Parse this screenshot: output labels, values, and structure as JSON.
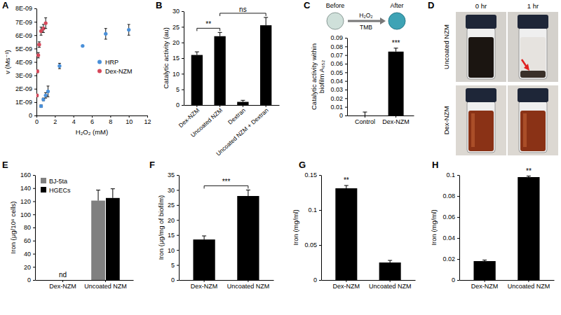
{
  "chart_data": [
    {
      "title": "A",
      "type": "scatter",
      "x_label": "H₂O₂ (mM)",
      "y_label": "v (Ms⁻¹)",
      "xlim": [
        0,
        12
      ],
      "xticks": [
        0,
        2,
        4,
        6,
        8,
        10,
        12
      ],
      "ylim": [
        0,
        8e-09
      ],
      "yticks": [
        0,
        {
          "value": 1e-09,
          "label": "1E-09"
        },
        {
          "value": 2e-09,
          "label": "2E-09"
        },
        {
          "value": 3e-09,
          "label": "3E-09"
        },
        {
          "value": 4e-09,
          "label": "4E-09"
        },
        {
          "value": 5e-09,
          "label": "5E-09"
        },
        {
          "value": 6e-09,
          "label": "6E-09"
        },
        {
          "value": 7e-09,
          "label": "7E-09"
        },
        {
          "value": 8e-09,
          "label": "8E-09"
        }
      ],
      "legend": "right",
      "series": [
        {
          "name": "HRP",
          "color": "#4a90d9",
          "marker": "circle",
          "x": [
            0.5,
            0.75,
            1,
            1.25,
            2.5,
            5,
            7.5,
            10
          ],
          "values": [
            7e-10,
            1.2e-09,
            1.5e-09,
            1.8e-09,
            3.7e-09,
            5.2e-09,
            6.1e-09,
            6.4e-09
          ],
          "errors": [
            1e-10,
            1e-10,
            2e-10,
            4e-10,
            2e-10,
            0,
            4e-10,
            4e-10
          ]
        },
        {
          "name": "Dex-NZM",
          "color": "#d6485a",
          "marker": "circle",
          "x": [
            0.05,
            0.1,
            0.2,
            0.3,
            0.5,
            0.75,
            1
          ],
          "values": [
            1.5e-09,
            3.3e-09,
            4.5e-09,
            5.3e-09,
            6.3e-09,
            6.5e-09,
            6.9e-09
          ],
          "errors": [
            1e-10,
            1e-10,
            2e-10,
            2e-10,
            3e-10,
            3e-10,
            4e-10
          ]
        }
      ]
    },
    {
      "title": "B",
      "type": "bar",
      "y_label": "Catalytic activity (au)",
      "categories": [
        "Dex-NZM",
        "Uncoated NZM",
        "Dextran",
        "Uncoated NZM + Dextran"
      ],
      "values": [
        16,
        22,
        1,
        25.5
      ],
      "errors": [
        1,
        1.2,
        0.5,
        2.5
      ],
      "color": "#000000",
      "ylim": [
        0,
        30
      ],
      "yticks": [
        0,
        5,
        10,
        15,
        20,
        25,
        30
      ],
      "annotations": [
        {
          "text": "**",
          "from": "Dex-NZM",
          "to": "Uncoated NZM"
        },
        {
          "text": "ns",
          "from": "Uncoated NZM",
          "to": "Uncoated NZM + Dextran"
        }
      ]
    },
    {
      "title": "C",
      "type": "bar",
      "y_label": [
        "Catalytic activity within",
        "biofilm A₆₅₂"
      ],
      "categories": [
        "Control",
        "Dex-NZM"
      ],
      "values": [
        0,
        0.074
      ],
      "errors": [
        0.004,
        0.004
      ],
      "color": "#000000",
      "ylim": [
        0,
        0.09
      ],
      "yticks": [
        0,
        0.01,
        0.02,
        0.03,
        0.04,
        0.05,
        0.06,
        0.07,
        0.08,
        0.09
      ],
      "annotations": [
        {
          "text": "***",
          "at": "Dex-NZM"
        }
      ],
      "image": {
        "before": "Before",
        "after": "After",
        "reagents": [
          "H₂O₂",
          "TMB"
        ]
      }
    },
    {
      "title": "D",
      "type": "photo",
      "columns": [
        "0 hr",
        "1 hr"
      ],
      "rows": [
        "Uncoated NZM",
        "Dex-NZM"
      ]
    },
    {
      "title": "E",
      "type": "bar",
      "y_label": "Iron (μg/10⁶ cells)",
      "categories": [
        "Dex-NZM",
        "Uncoated NZM"
      ],
      "series": [
        {
          "name": "BJ-5ta",
          "color": "#808080",
          "values": [
            null,
            121
          ],
          "errors": [
            null,
            16
          ]
        },
        {
          "name": "HGECs",
          "color": "#000000",
          "values": [
            null,
            125
          ],
          "errors": [
            null,
            14
          ]
        }
      ],
      "ylim": [
        0,
        160
      ],
      "yticks": [
        0,
        20,
        40,
        60,
        80,
        100,
        120,
        140,
        160
      ],
      "legend": "top-left",
      "annotations": [
        {
          "text": "nd",
          "at": "Dex-NZM"
        }
      ]
    },
    {
      "title": "F",
      "type": "bar",
      "y_label": "Iron (μg/mg of biofilm)",
      "categories": [
        "Dex-NZM",
        "Uncoated NZM"
      ],
      "values": [
        13.5,
        28
      ],
      "errors": [
        1.2,
        2
      ],
      "color": "#000000",
      "ylim": [
        0,
        35
      ],
      "yticks": [
        0,
        5,
        10,
        15,
        20,
        25,
        30,
        35
      ],
      "annotations": [
        {
          "text": "***",
          "from": "Dex-NZM",
          "to": "Uncoated NZM"
        }
      ]
    },
    {
      "title": "G",
      "type": "bar",
      "y_label": "Iron (mg/ml)",
      "categories": [
        "Dex-NZM",
        "Uncoated NZM"
      ],
      "values": [
        0.131,
        0.025
      ],
      "errors": [
        0.004,
        0.003
      ],
      "color": "#000000",
      "ylim": [
        0,
        0.15
      ],
      "yticks": [
        0,
        0.05,
        0.1,
        0.15
      ],
      "annotations": [
        {
          "text": "**",
          "at": "Dex-NZM"
        }
      ]
    },
    {
      "title": "H",
      "type": "bar",
      "y_label": "Iron (mg/ml)",
      "categories": [
        "Dex-NZM",
        "Uncoated NZM"
      ],
      "values": [
        0.018,
        0.098
      ],
      "errors": [
        0.001,
        0.001
      ],
      "color": "#000000",
      "ylim": [
        0,
        0.1
      ],
      "yticks": [
        0,
        0.02,
        0.04,
        0.06,
        0.08,
        0.1
      ],
      "annotations": [
        {
          "text": "**",
          "at": "Uncoated NZM"
        }
      ]
    }
  ]
}
